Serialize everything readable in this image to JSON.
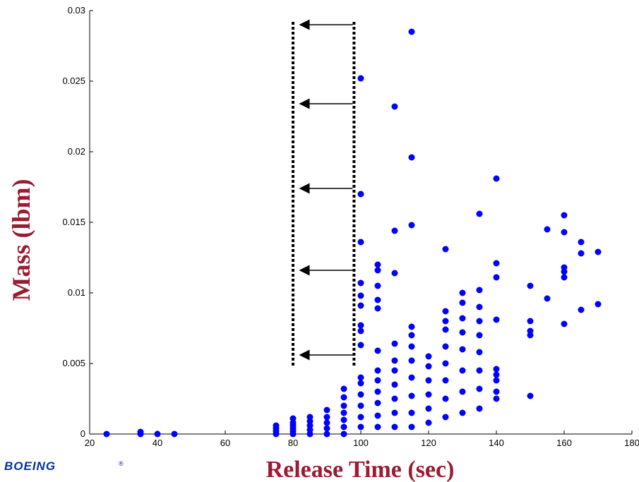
{
  "logo": {
    "text": "BOEING",
    "mark": "®"
  },
  "colors": {
    "points": "#0000ff",
    "labels": "#9b1b30",
    "logo": "#0033a0"
  },
  "chart_data": {
    "type": "scatter",
    "xlabel": "Release Time (sec)",
    "ylabel": "Mass (lbm)",
    "xlim": [
      20,
      180
    ],
    "ylim": [
      0,
      0.03
    ],
    "xticks": [
      20,
      40,
      60,
      80,
      100,
      120,
      140,
      160,
      180
    ],
    "yticks": [
      0,
      0.005,
      0.01,
      0.015,
      0.02,
      0.025,
      0.03
    ],
    "grid": false,
    "legend": "none",
    "points": [
      [
        25,
        0.0
      ],
      [
        35,
        0.0
      ],
      [
        35,
        0.00015
      ],
      [
        40,
        0.0
      ],
      [
        45,
        0.0
      ],
      [
        75,
        0.0
      ],
      [
        75,
        0.0002
      ],
      [
        75,
        0.0004
      ],
      [
        75,
        0.0006
      ],
      [
        80,
        0.0
      ],
      [
        80,
        0.0002
      ],
      [
        80,
        0.0004
      ],
      [
        80,
        0.0006
      ],
      [
        80,
        0.0008
      ],
      [
        80,
        0.0011
      ],
      [
        85,
        0.0
      ],
      [
        85,
        0.0003
      ],
      [
        85,
        0.0006
      ],
      [
        85,
        0.0009
      ],
      [
        85,
        0.0012
      ],
      [
        90,
        0.0
      ],
      [
        90,
        0.0004
      ],
      [
        90,
        0.0008
      ],
      [
        90,
        0.0012
      ],
      [
        90,
        0.0017
      ],
      [
        95,
        0.0
      ],
      [
        95,
        0.0005
      ],
      [
        95,
        0.001
      ],
      [
        95,
        0.0015
      ],
      [
        95,
        0.002
      ],
      [
        95,
        0.0026
      ],
      [
        95,
        0.0032
      ],
      [
        100,
        0.0005
      ],
      [
        100,
        0.0012
      ],
      [
        100,
        0.002
      ],
      [
        100,
        0.0028
      ],
      [
        100,
        0.0036
      ],
      [
        100,
        0.004
      ],
      [
        100,
        0.0063
      ],
      [
        100,
        0.0073
      ],
      [
        100,
        0.0077
      ],
      [
        100,
        0.0091
      ],
      [
        100,
        0.0098
      ],
      [
        100,
        0.0107
      ],
      [
        100,
        0.0136
      ],
      [
        100,
        0.017
      ],
      [
        100,
        0.0252
      ],
      [
        105,
        0.0005
      ],
      [
        105,
        0.0013
      ],
      [
        105,
        0.0022
      ],
      [
        105,
        0.003
      ],
      [
        105,
        0.0038
      ],
      [
        105,
        0.0045
      ],
      [
        105,
        0.0059
      ],
      [
        105,
        0.0089
      ],
      [
        105,
        0.0095
      ],
      [
        105,
        0.0105
      ],
      [
        105,
        0.0116
      ],
      [
        105,
        0.012
      ],
      [
        110,
        0.0005
      ],
      [
        110,
        0.0015
      ],
      [
        110,
        0.0025
      ],
      [
        110,
        0.0035
      ],
      [
        110,
        0.0045
      ],
      [
        110,
        0.0052
      ],
      [
        110,
        0.0064
      ],
      [
        110,
        0.0114
      ],
      [
        110,
        0.0144
      ],
      [
        110,
        0.0232
      ],
      [
        115,
        0.0005
      ],
      [
        115,
        0.0015
      ],
      [
        115,
        0.0027
      ],
      [
        115,
        0.004
      ],
      [
        115,
        0.0052
      ],
      [
        115,
        0.0062
      ],
      [
        115,
        0.007
      ],
      [
        115,
        0.0076
      ],
      [
        115,
        0.0148
      ],
      [
        115,
        0.0196
      ],
      [
        115,
        0.0285
      ],
      [
        120,
        0.0008
      ],
      [
        120,
        0.0018
      ],
      [
        120,
        0.0028
      ],
      [
        120,
        0.0038
      ],
      [
        120,
        0.0048
      ],
      [
        120,
        0.0055
      ],
      [
        125,
        0.0012
      ],
      [
        125,
        0.0025
      ],
      [
        125,
        0.0038
      ],
      [
        125,
        0.005
      ],
      [
        125,
        0.0062
      ],
      [
        125,
        0.0074
      ],
      [
        125,
        0.008
      ],
      [
        125,
        0.0087
      ],
      [
        125,
        0.0131
      ],
      [
        130,
        0.0015
      ],
      [
        130,
        0.003
      ],
      [
        130,
        0.0045
      ],
      [
        130,
        0.006
      ],
      [
        130,
        0.0072
      ],
      [
        130,
        0.0082
      ],
      [
        130,
        0.0093
      ],
      [
        130,
        0.01
      ],
      [
        135,
        0.0018
      ],
      [
        135,
        0.0032
      ],
      [
        135,
        0.0045
      ],
      [
        135,
        0.0058
      ],
      [
        135,
        0.007
      ],
      [
        135,
        0.008
      ],
      [
        135,
        0.009
      ],
      [
        135,
        0.0102
      ],
      [
        135,
        0.0156
      ],
      [
        140,
        0.0025
      ],
      [
        140,
        0.003
      ],
      [
        140,
        0.0038
      ],
      [
        140,
        0.0042
      ],
      [
        140,
        0.0046
      ],
      [
        140,
        0.0081
      ],
      [
        140,
        0.0111
      ],
      [
        140,
        0.0121
      ],
      [
        140,
        0.0181
      ],
      [
        150,
        0.0027
      ],
      [
        150,
        0.007
      ],
      [
        150,
        0.0073
      ],
      [
        150,
        0.008
      ],
      [
        150,
        0.0105
      ],
      [
        155,
        0.0096
      ],
      [
        155,
        0.0145
      ],
      [
        160,
        0.0078
      ],
      [
        160,
        0.0111
      ],
      [
        160,
        0.0115
      ],
      [
        160,
        0.0118
      ],
      [
        160,
        0.0143
      ],
      [
        160,
        0.0155
      ],
      [
        165,
        0.0088
      ],
      [
        165,
        0.0128
      ],
      [
        165,
        0.0136
      ],
      [
        170,
        0.0092
      ],
      [
        170,
        0.0129
      ]
    ],
    "annotations": {
      "dotted_lines_x": [
        80,
        98
      ],
      "dotted_lines_y": [
        0.0048,
        0.0292
      ],
      "arrows": [
        {
          "from_x": 98,
          "to_x": 80,
          "y": 0.029
        },
        {
          "from_x": 98,
          "to_x": 80,
          "y": 0.0234
        },
        {
          "from_x": 98,
          "to_x": 80,
          "y": 0.0174
        },
        {
          "from_x": 98,
          "to_x": 80,
          "y": 0.0116
        },
        {
          "from_x": 98,
          "to_x": 80,
          "y": 0.0056
        }
      ]
    }
  }
}
